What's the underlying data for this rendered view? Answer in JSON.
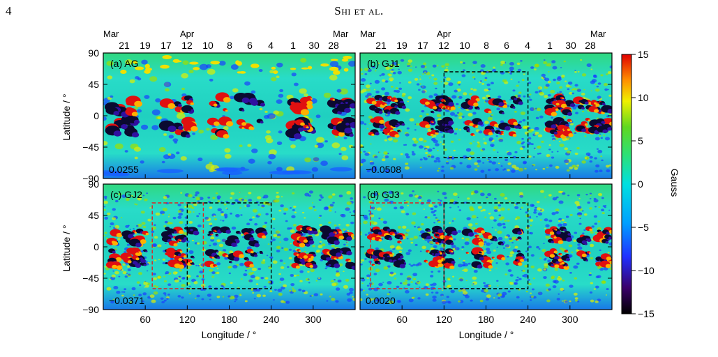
{
  "page": {
    "number": "4",
    "running_head": "Shi et al."
  },
  "figure": {
    "y_axis_label": "Latitude / °",
    "x_axis_label": "Longitude / °",
    "lat_ticks": [
      "90",
      "45",
      "0",
      "−45",
      "−90"
    ],
    "lon_ticks": [
      "60",
      "120",
      "180",
      "240",
      "300"
    ],
    "date_months": [
      "Mar",
      "Apr",
      "Mar"
    ],
    "date_days": [
      "21",
      "19",
      "17",
      "12",
      "10",
      "8",
      "6",
      "4",
      "1",
      "30",
      "28"
    ],
    "panels": [
      {
        "id": "a",
        "title": "(a) AG",
        "value": "0.0255"
      },
      {
        "id": "b",
        "title": "(b) GJ1",
        "value": "−0.0508"
      },
      {
        "id": "c",
        "title": "(c) GJ2",
        "value": "−0.0371"
      },
      {
        "id": "d",
        "title": "(d) GJ3",
        "value": "0.0020"
      }
    ],
    "colorbar": {
      "label": "Gauss",
      "ticks": [
        "15",
        "10",
        "5",
        "0",
        "−5",
        "−10",
        "−15"
      ],
      "range": [
        -15,
        15
      ],
      "colors": [
        "#000000",
        "#2a0050",
        "#4b00a0",
        "#1e30ff",
        "#00a8ff",
        "#00e0e0",
        "#30e080",
        "#40d040",
        "#b0e000",
        "#ffe000",
        "#ff8000",
        "#e00000"
      ]
    }
  },
  "chart_data": {
    "type": "heatmap",
    "xlabel": "Longitude / °",
    "ylabel": "Latitude / °",
    "xlim": [
      0,
      360
    ],
    "ylim": [
      -90,
      90
    ],
    "x_ticks": [
      60,
      120,
      180,
      240,
      300
    ],
    "y_ticks": [
      90,
      45,
      0,
      -45,
      -90
    ],
    "color_range": [
      -15,
      15
    ],
    "colorbar_label": "Gauss",
    "boxes": {
      "b": [
        {
          "color": "black",
          "lon": [
            120,
            240
          ],
          "lat": [
            -60,
            63
          ]
        }
      ],
      "c": [
        {
          "color": "red",
          "lon": [
            70,
            143
          ],
          "lat": [
            -60,
            63
          ]
        },
        {
          "color": "black",
          "lon": [
            120,
            240
          ],
          "lat": [
            -60,
            63
          ]
        }
      ],
      "d": [
        {
          "color": "red",
          "lon": [
            15,
            120
          ],
          "lat": [
            -60,
            63
          ]
        },
        {
          "color": "black",
          "lon": [
            120,
            240
          ],
          "lat": [
            -60,
            63
          ]
        }
      ]
    }
  }
}
